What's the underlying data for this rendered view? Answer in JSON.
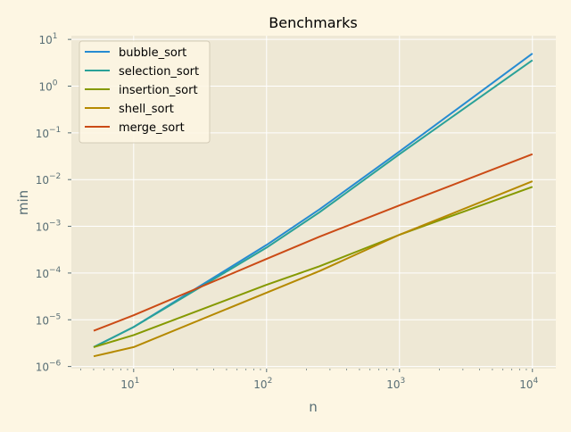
{
  "chart_data": {
    "type": "line",
    "title": "Benchmarks",
    "xlabel": "n",
    "ylabel": "min",
    "xscale": "log",
    "yscale": "log",
    "xlim": [
      3.4,
      15000
    ],
    "ylim": [
      9e-07,
      12
    ],
    "grid": true,
    "legend_position": "top-left",
    "x_ticks": [
      {
        "value": 10,
        "base": "10",
        "exp": "1"
      },
      {
        "value": 100,
        "base": "10",
        "exp": "2"
      },
      {
        "value": 1000,
        "base": "10",
        "exp": "3"
      },
      {
        "value": 10000,
        "base": "10",
        "exp": "4"
      }
    ],
    "y_ticks": [
      {
        "value": 1e-06,
        "base": "10",
        "exp": "−6"
      },
      {
        "value": 1e-05,
        "base": "10",
        "exp": "−5"
      },
      {
        "value": 0.0001,
        "base": "10",
        "exp": "−4"
      },
      {
        "value": 0.001,
        "base": "10",
        "exp": "−3"
      },
      {
        "value": 0.01,
        "base": "10",
        "exp": "−2"
      },
      {
        "value": 0.1,
        "base": "10",
        "exp": "−1"
      },
      {
        "value": 1,
        "base": "10",
        "exp": "0"
      },
      {
        "value": 10,
        "base": "10",
        "exp": "1"
      }
    ],
    "x": [
      5,
      10,
      100,
      250,
      1000,
      10000
    ],
    "series": [
      {
        "name": "bubble_sort",
        "color": "#268bd2",
        "values": [
          2.6e-06,
          7e-06,
          0.0004,
          0.0023,
          0.04,
          5.0
        ]
      },
      {
        "name": "selection_sort",
        "color": "#2aa198",
        "values": [
          2.6e-06,
          7e-06,
          0.00035,
          0.002,
          0.035,
          3.6
        ]
      },
      {
        "name": "insertion_sort",
        "color": "#859900",
        "values": [
          2.6e-06,
          4.7e-06,
          5.6e-05,
          0.00014,
          0.00066,
          0.007
        ]
      },
      {
        "name": "shell_sort",
        "color": "#b58900",
        "values": [
          1.65e-06,
          2.6e-06,
          3.8e-05,
          0.00011,
          0.00066,
          0.0092
        ]
      },
      {
        "name": "merge_sort",
        "color": "#cb4b16",
        "values": [
          5.8e-06,
          1.25e-05,
          0.0002,
          0.0006,
          0.0028,
          0.035
        ]
      }
    ]
  }
}
